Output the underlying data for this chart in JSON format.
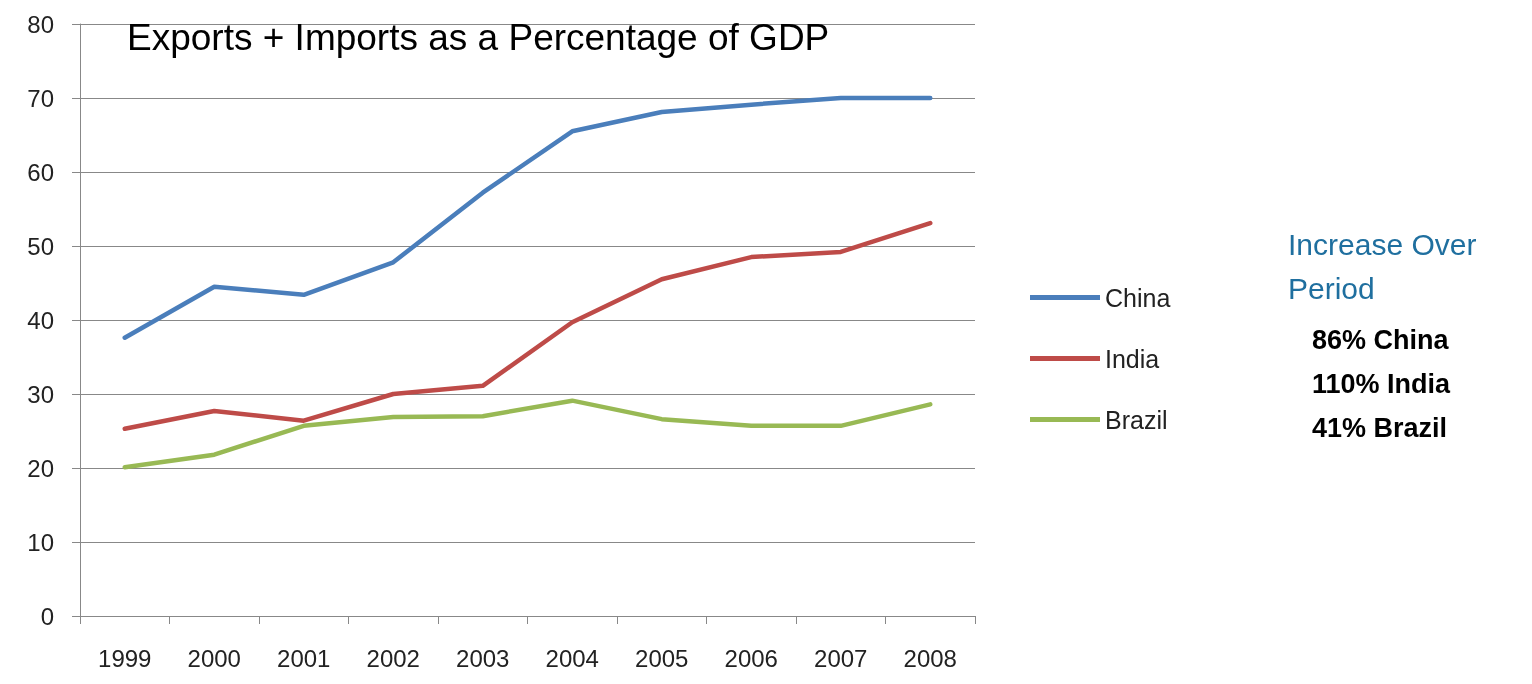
{
  "chart_data": {
    "type": "line",
    "title": "Exports + Imports as a Percentage of GDP",
    "categories": [
      "1999",
      "2000",
      "2001",
      "2002",
      "2003",
      "2004",
      "2005",
      "2006",
      "2007",
      "2008"
    ],
    "series": [
      {
        "name": "China",
        "color": "#4a7ebb",
        "values": [
          37.6,
          44.5,
          43.4,
          47.8,
          57.2,
          65.5,
          68.1,
          69.1,
          70,
          70
        ]
      },
      {
        "name": "India",
        "color": "#be4b48",
        "values": [
          25.3,
          27.7,
          26.4,
          30,
          31.1,
          39.7,
          45.5,
          48.5,
          49.2,
          53.1
        ]
      },
      {
        "name": "Brazil",
        "color": "#98b954",
        "values": [
          20.1,
          21.8,
          25.7,
          26.9,
          27,
          29.1,
          26.6,
          25.7,
          25.7,
          28.6
        ]
      }
    ],
    "ylim": [
      0,
      80
    ],
    "yticks": [
      0,
      10,
      20,
      30,
      40,
      50,
      60,
      70,
      80
    ],
    "grid": "y",
    "legend": "right",
    "marker": "none",
    "line_style": "solid",
    "annotations": [
      "Increase Over Period",
      "86% China",
      "110% India",
      "41% Brazil"
    ]
  }
}
